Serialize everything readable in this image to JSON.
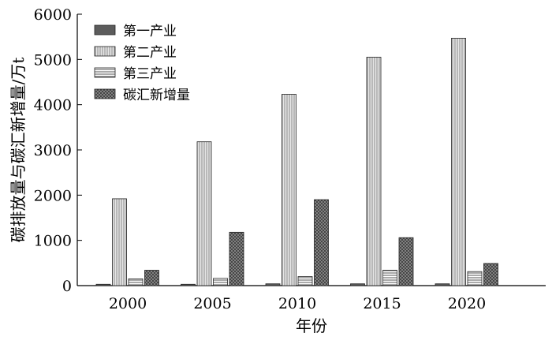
{
  "chart_data": {
    "type": "bar",
    "xlabel": "年份",
    "ylabel": "碳排放量与碳汇新增量/万t",
    "categories": [
      "2000",
      "2005",
      "2010",
      "2015",
      "2020"
    ],
    "ylim": [
      0,
      6000
    ],
    "yticks": [
      0,
      1000,
      2000,
      3000,
      4000,
      5000,
      6000
    ],
    "legend_position": "top-left",
    "grid": false,
    "series": [
      {
        "name": "第一产业",
        "values": [
          30,
          30,
          40,
          40,
          40
        ]
      },
      {
        "name": "第二产业",
        "values": [
          1920,
          3180,
          4230,
          5050,
          5470
        ]
      },
      {
        "name": "第三产业",
        "values": [
          150,
          160,
          200,
          340,
          310
        ]
      },
      {
        "name": "碳汇新增量",
        "values": [
          340,
          1180,
          1900,
          1060,
          490
        ]
      }
    ]
  }
}
